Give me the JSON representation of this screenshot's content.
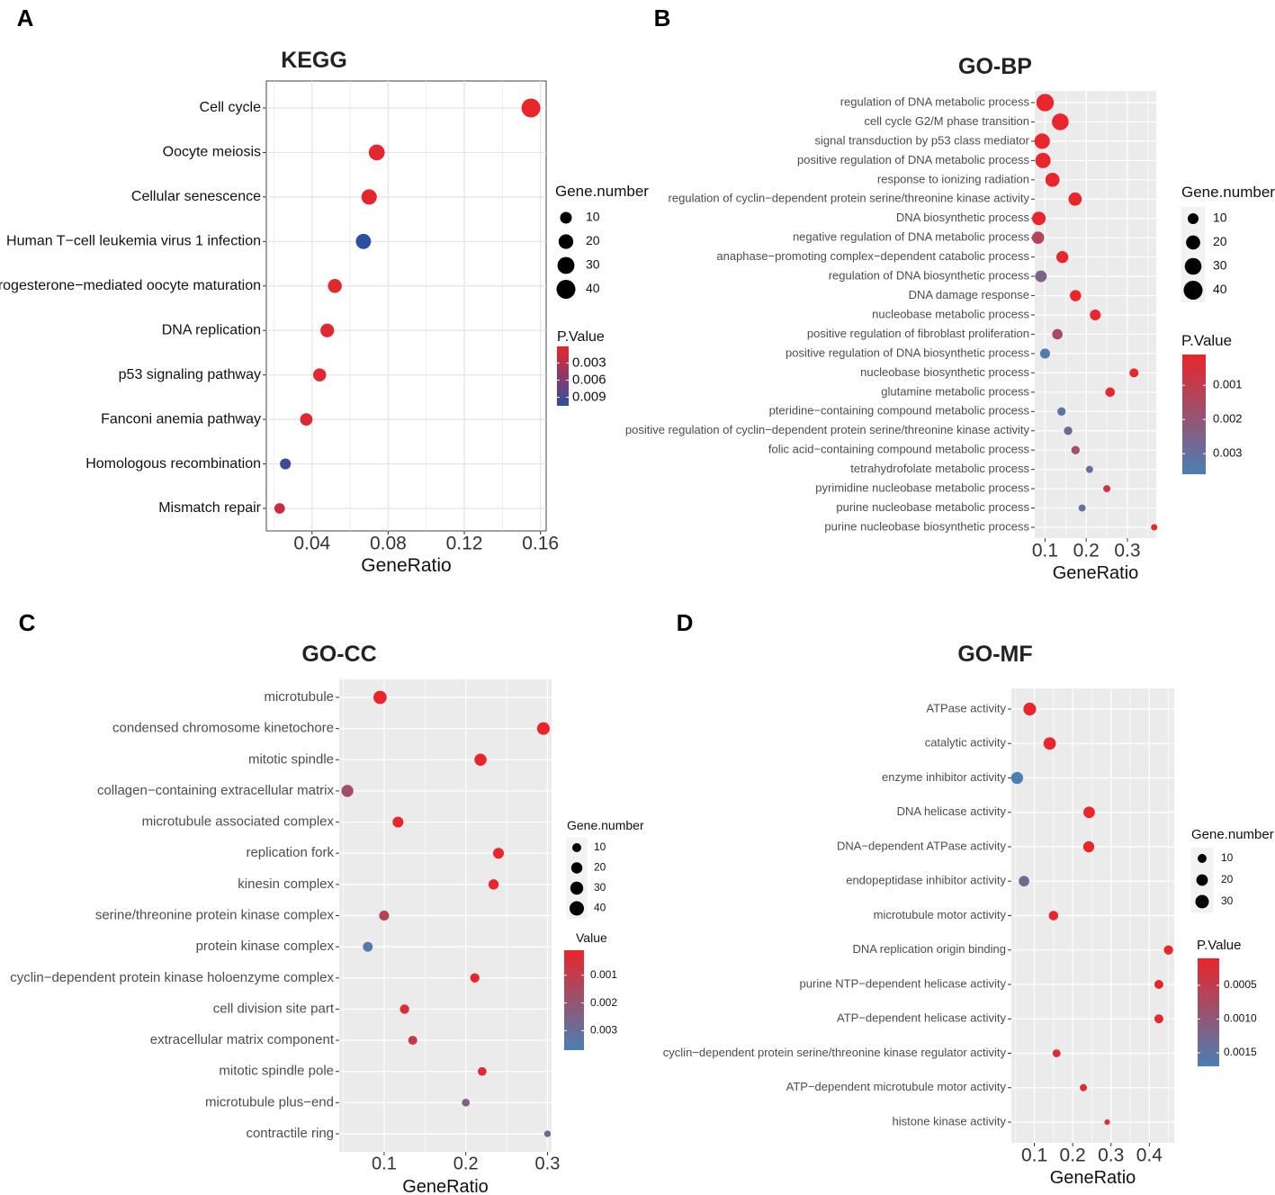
{
  "panels": [
    {
      "letter": "A",
      "chart_data": {
        "type": "scatter",
        "title": "KEGG",
        "xlabel": "GeneRatio",
        "ylabel": "",
        "xlim": [
          0.016,
          0.163
        ],
        "xticks": [
          0.04,
          0.08,
          0.12,
          0.16
        ],
        "xtick_labels": [
          "0.04",
          "0.08",
          "0.12",
          "0.16"
        ],
        "background": "white",
        "categories": [
          "Cell cycle",
          "Oocyte meiosis",
          "Cellular senescence",
          "Human T−cell leukemia virus 1 infection",
          "Progesterone−mediated oocyte maturation",
          "DNA replication",
          "p53 signaling pathway",
          "Fanconi anemia pathway",
          "Homologous recombination",
          "Mismatch repair"
        ],
        "x": [
          0.155,
          0.074,
          0.07,
          0.067,
          0.052,
          0.048,
          0.044,
          0.037,
          0.026,
          0.023
        ],
        "size": [
          40,
          25,
          23,
          22,
          17,
          16,
          14,
          12,
          8,
          7
        ],
        "pvalue": [
          0.0001,
          0.0004,
          0.0004,
          0.0105,
          0.0005,
          0.0006,
          0.0006,
          0.0008,
          0.0095,
          0.0018
        ],
        "size_legend": {
          "title": "Gene.number",
          "values": [
            10,
            20,
            30,
            40
          ],
          "labels": [
            "10",
            "20",
            "30",
            "40"
          ]
        },
        "color_legend": {
          "title": "P.Value",
          "labels": [
            "0.003",
            "0.006",
            "0.009"
          ],
          "values": [
            0.003,
            0.006,
            0.009
          ],
          "min": 0.0001,
          "max": 0.0105,
          "low_color": "#e8262b",
          "high_color": "#2d4fa0"
        }
      }
    },
    {
      "letter": "B",
      "chart_data": {
        "type": "scatter",
        "title": "GO-BP",
        "xlabel": "GeneRatio",
        "ylabel": "",
        "xlim": [
          0.075,
          0.37
        ],
        "xticks": [
          0.1,
          0.2,
          0.3
        ],
        "xtick_labels": [
          "0.1",
          "0.2",
          "0.3"
        ],
        "background": "grey",
        "categories": [
          "regulation of DNA metabolic process",
          "cell cycle G2/M phase transition",
          "signal transduction by p53 class mediator",
          "positive regulation of DNA metabolic process",
          "response to ionizing radiation",
          "regulation of cyclin−dependent protein serine/threonine kinase activity",
          "DNA biosynthetic process",
          "negative regulation of DNA metabolic process",
          "anaphase−promoting complex−dependent catabolic process",
          "regulation of DNA biosynthetic process",
          "DNA damage response",
          "nucleobase metabolic process",
          "positive regulation of fibroblast proliferation",
          "positive regulation of DNA biosynthetic process",
          "nucleobase biosynthetic process",
          "glutamine metabolic process",
          "pteridine−containing compound metabolic process",
          "positive regulation of cyclin−dependent protein serine/threonine kinase activity",
          "folic acid−containing compound metabolic process",
          "tetrahydrofolate metabolic process",
          "pyrimidine nucleobase metabolic process",
          "purine nucleobase metabolic process",
          "purine nucleobase biosynthetic process"
        ],
        "x": [
          0.1,
          0.137,
          0.093,
          0.095,
          0.118,
          0.173,
          0.085,
          0.083,
          0.142,
          0.09,
          0.174,
          0.222,
          0.13,
          0.1,
          0.316,
          0.258,
          0.14,
          0.156,
          0.174,
          0.208,
          0.25,
          0.19,
          0.365
        ],
        "size": [
          33,
          30,
          25,
          24,
          20,
          17,
          18,
          14,
          13,
          12,
          11,
          10,
          9,
          8,
          6,
          7,
          5,
          5,
          5,
          3,
          3,
          3,
          2
        ],
        "pvalue": [
          0.0001,
          0.0001,
          0.0001,
          0.0001,
          0.0001,
          0.0001,
          0.0001,
          0.0013,
          0.0001,
          0.0025,
          0.0001,
          0.0001,
          0.0015,
          0.0034,
          0.0001,
          0.0001,
          0.0032,
          0.0027,
          0.0017,
          0.0031,
          0.0006,
          0.0031,
          0.0002
        ],
        "size_legend": {
          "title": "Gene.number",
          "values": [
            10,
            20,
            30,
            40
          ],
          "labels": [
            "10",
            "20",
            "30",
            "40"
          ]
        },
        "color_legend": {
          "title": "P.Value",
          "labels": [
            "0.003",
            "0.002",
            "0.001"
          ],
          "values": [
            0.003,
            0.002,
            0.001
          ],
          "min": 0.0001,
          "max": 0.0036,
          "low_color": "#e8262b",
          "high_color": "#4a7fb4"
        }
      }
    },
    {
      "letter": "C",
      "chart_data": {
        "type": "scatter",
        "title": "GO-CC",
        "xlabel": "GeneRatio",
        "ylabel": "",
        "xlim": [
          0.045,
          0.305
        ],
        "xticks": [
          0.1,
          0.2,
          0.3
        ],
        "xtick_labels": [
          "0.1",
          "0.2",
          "0.3"
        ],
        "background": "grey",
        "categories": [
          "microtubule",
          "condensed chromosome kinetochore",
          "mitotic spindle",
          "collagen−containing extracellular matrix",
          "microtubule associated complex",
          "replication fork",
          "kinesin complex",
          "serine/threonine protein kinase complex",
          "protein kinase complex",
          "cyclin−dependent protein kinase holoenzyme complex",
          "cell division site part",
          "extracellular matrix component",
          "mitotic spindle pole",
          "microtubule plus−end",
          "contractile ring"
        ],
        "x": [
          0.095,
          0.295,
          0.218,
          0.055,
          0.117,
          0.24,
          0.234,
          0.1,
          0.08,
          0.211,
          0.125,
          0.135,
          0.22,
          0.2,
          0.3
        ],
        "size": [
          32,
          28,
          25,
          24,
          18,
          18,
          15,
          14,
          13,
          11,
          11,
          10,
          9,
          6,
          3
        ],
        "pvalue": [
          0.0001,
          0.0001,
          0.0001,
          0.0017,
          0.0001,
          0.0001,
          0.0001,
          0.0012,
          0.0034,
          0.0001,
          0.0004,
          0.0009,
          0.0002,
          0.0024,
          0.0029
        ],
        "size_legend": {
          "title": "Gene.number",
          "values": [
            10,
            20,
            30,
            40
          ],
          "labels": [
            "10",
            "20",
            "30",
            "40"
          ]
        },
        "color_legend": {
          "title": "Value",
          "labels": [
            "0.003",
            "0.002",
            "0.001"
          ],
          "values": [
            0.003,
            0.002,
            0.001
          ],
          "min": 0.0001,
          "max": 0.0037,
          "low_color": "#e8262b",
          "high_color": "#4a7fb4"
        }
      }
    },
    {
      "letter": "D",
      "chart_data": {
        "type": "scatter",
        "title": "GO-MF",
        "xlabel": "GeneRatio",
        "ylabel": "",
        "xlim": [
          0.04,
          0.465
        ],
        "xticks": [
          0.1,
          0.2,
          0.3,
          0.4
        ],
        "xtick_labels": [
          "0.1",
          "0.2",
          "0.3",
          "0.4"
        ],
        "background": "grey",
        "categories": [
          "ATPase activity",
          "catalytic activity",
          "enzyme inhibitor activity",
          "DNA helicase activity",
          "DNA−dependent ATPase activity",
          "endopeptidase inhibitor activity",
          "microtubule motor activity",
          "DNA replication origin binding",
          "purine NTP−dependent helicase activity",
          "ATP−dependent helicase activity",
          "cyclin−dependent protein serine/threonine kinase regulator activity",
          "ATP−dependent microtubule motor activity",
          "histone kinase activity"
        ],
        "x": [
          0.088,
          0.14,
          0.055,
          0.243,
          0.242,
          0.073,
          0.15,
          0.45,
          0.425,
          0.425,
          0.158,
          0.228,
          0.29
        ],
        "size": [
          26,
          24,
          22,
          20,
          18,
          16,
          12,
          11,
          10,
          10,
          7,
          5,
          2
        ],
        "pvalue": [
          0.0001,
          0.0001,
          0.0017,
          0.0001,
          0.0001,
          0.0013,
          0.0001,
          0.0001,
          0.0001,
          0.0001,
          0.0002,
          0.0002,
          0.0001
        ],
        "size_legend": {
          "title": "Gene.number",
          "values": [
            10,
            20,
            30
          ],
          "labels": [
            "10",
            "20",
            "30"
          ]
        },
        "color_legend": {
          "title": "P.Value",
          "labels": [
            "0.0015",
            "0.0010",
            "0.0005"
          ],
          "values": [
            0.0015,
            0.001,
            0.0005
          ],
          "min": 0.0001,
          "max": 0.0017,
          "low_color": "#e8262b",
          "high_color": "#4a7fb4"
        }
      }
    }
  ]
}
